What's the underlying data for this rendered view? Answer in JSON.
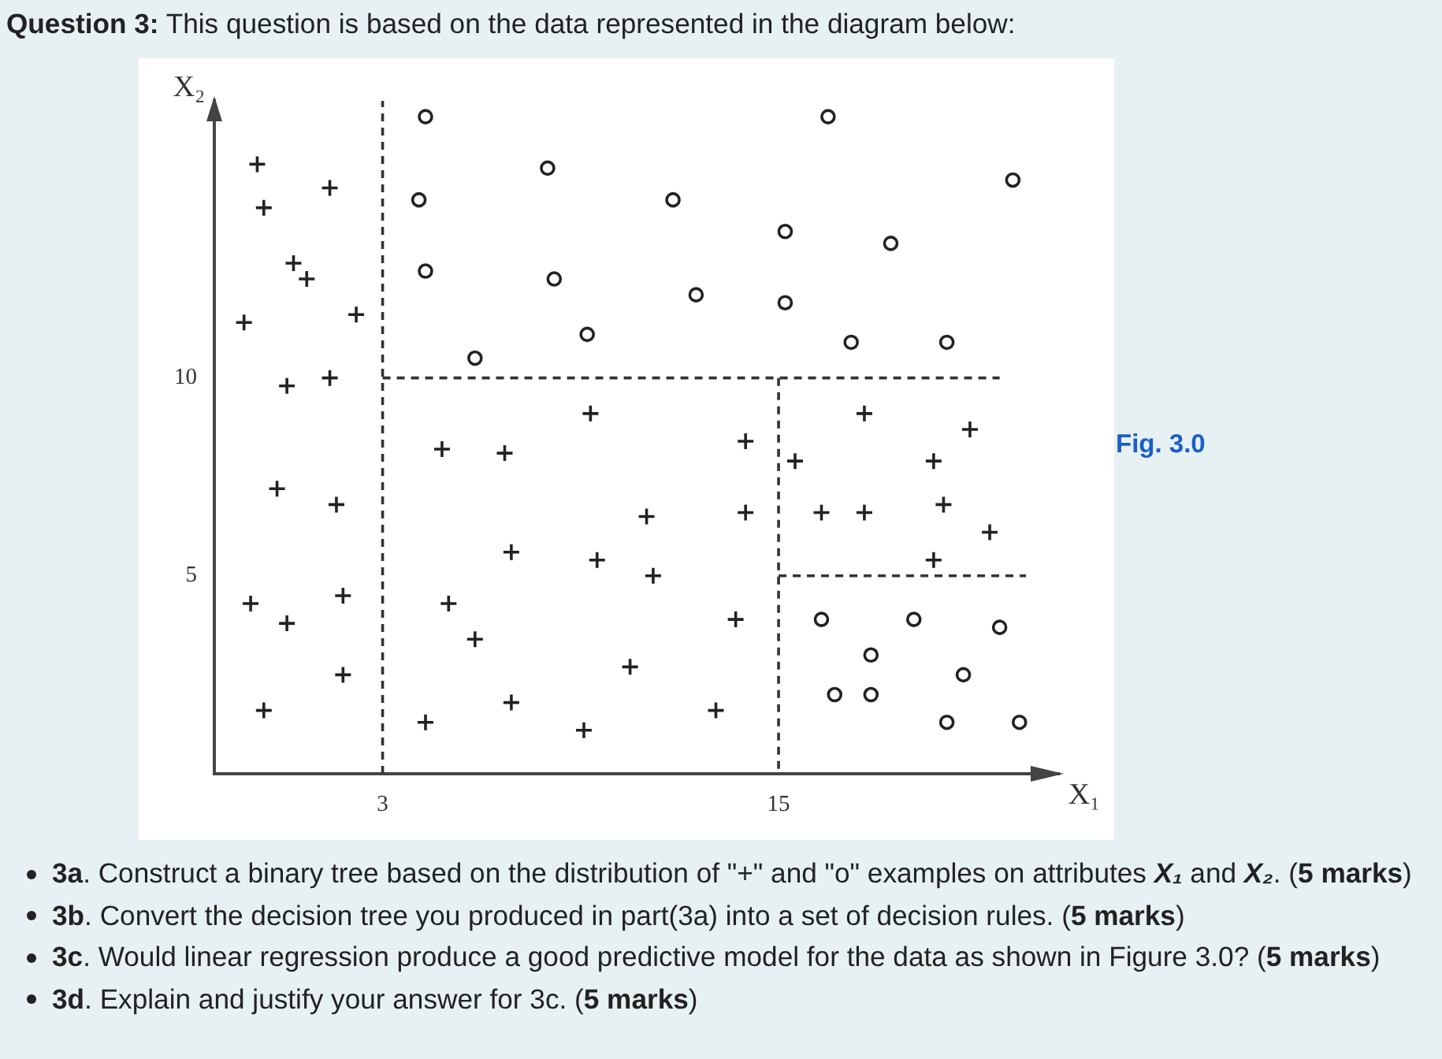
{
  "chart_data": {
    "type": "scatter",
    "title": "Question 3: This question is based on the data represented in the diagram below:",
    "xlabel": "X₁",
    "ylabel": "X₂",
    "annotations": [
      "Fig. 3.0",
      "3a. Construct a binary tree based on the distribution of \"+\" and \"o\" examples on attributes X₁ and X₂. (5 marks)",
      "3b. Convert the decision tree you produced in part(3a) into a set of decision rules. (5 marks)",
      "3c. Would linear regression produce a good predictive model for the data as shown in Figure 3.0? (5 marks)",
      "3d. Explain and justify your answer for 3c. (5 marks)"
    ],
    "xlim": [
      -2.1,
      23.5
    ],
    "ylim": [
      0,
      17
    ],
    "xticks": [
      3,
      15
    ],
    "yticks": [
      5,
      10
    ],
    "series": [
      {
        "type": "scatter",
        "marker": "cross",
        "color": "#222222",
        "x": [
          -0.8,
          1.4,
          -0.6,
          0.3,
          0.7,
          -1.2,
          2.2,
          0.1,
          1.4,
          9.3,
          4.8,
          6.7,
          17.6,
          20.8,
          14.0,
          15.5,
          19.7,
          -0.2,
          1.6,
          11.0,
          6.9,
          9.5,
          -1.0,
          1.8,
          5.0,
          0.1,
          5.8,
          10.5,
          1.8,
          6.9,
          -0.6,
          4.3,
          9.1,
          14.0,
          16.3,
          17.6,
          20.0,
          21.4,
          19.7,
          11.2,
          13.7,
          13.1
        ],
        "values": [
          15.4,
          14.8,
          14.3,
          12.9,
          12.5,
          11.4,
          11.6,
          9.8,
          10.0,
          9.1,
          8.2,
          8.1,
          9.1,
          8.7,
          8.4,
          7.9,
          7.9,
          7.2,
          6.8,
          6.5,
          5.6,
          5.4,
          4.3,
          4.5,
          4.3,
          3.8,
          3.4,
          2.7,
          2.5,
          1.8,
          1.6,
          1.3,
          1.1,
          6.6,
          6.6,
          6.6,
          6.8,
          6.1,
          5.4,
          5.0,
          3.9,
          1.6
        ]
      },
      {
        "type": "scatter",
        "marker": "circle",
        "color": "#222222",
        "x": [
          4.3,
          8.0,
          4.1,
          4.3,
          8.2,
          9.2,
          5.8,
          16.5,
          22.1,
          11.8,
          15.2,
          18.4,
          12.5,
          15.2,
          17.2,
          20.1,
          16.3,
          19.1,
          21.7,
          17.8,
          20.6,
          16.7,
          17.8,
          20.1,
          22.3
        ],
        "values": [
          16.6,
          15.3,
          14.5,
          12.7,
          12.5,
          11.1,
          10.5,
          16.6,
          15.0,
          14.5,
          13.7,
          13.4,
          12.1,
          11.9,
          10.9,
          10.9,
          3.9,
          3.9,
          3.7,
          3.0,
          2.5,
          2.0,
          2.0,
          1.3,
          1.3
        ]
      },
      {
        "type": "line",
        "marker": "none",
        "line_style": "dashed",
        "color": "#333333",
        "x": [
          3,
          3
        ],
        "values": [
          0,
          17
        ]
      },
      {
        "type": "line",
        "marker": "none",
        "line_style": "dashed",
        "color": "#333333",
        "x": [
          3,
          21.7
        ],
        "values": [
          10,
          10
        ]
      },
      {
        "type": "line",
        "marker": "none",
        "line_style": "dashed",
        "color": "#333333",
        "x": [
          15,
          15
        ],
        "values": [
          10,
          0
        ]
      },
      {
        "type": "line",
        "marker": "none",
        "line_style": "dashed",
        "color": "#333333",
        "x": [
          15,
          22.5
        ],
        "values": [
          5,
          5
        ]
      }
    ]
  }
}
